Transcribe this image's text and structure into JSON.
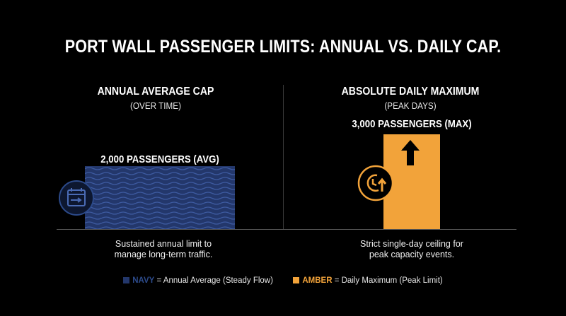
{
  "title": "PORT WALL PASSENGER LIMITS: ANNUAL VS. DAILY CAP.",
  "colors": {
    "navy": "#23376b",
    "amber": "#f2a33a",
    "background": "#000000"
  },
  "chart_data": {
    "type": "bar",
    "title": "PORT WALL PASSENGER LIMITS: ANNUAL VS. DAILY CAP.",
    "categories": [
      "ANNUAL AVERAGE CAP",
      "ABSOLUTE DAILY MAXIMUM"
    ],
    "values": [
      2000,
      3000
    ],
    "ylim": [
      0,
      3000
    ],
    "xlabel": "",
    "ylabel": "",
    "grid": false,
    "legend_position": "bottom"
  },
  "left_panel": {
    "heading": "ANNUAL AVERAGE CAP",
    "subheading": "(OVER TIME)",
    "value_label": "2,000 PASSENGERS (AVG)",
    "note_line1": "Sustained annual limit to",
    "note_line2": "manage long-term traffic.",
    "icon": "calendar-arrow-icon"
  },
  "right_panel": {
    "heading": "ABSOLUTE DAILY MAXIMUM",
    "subheading": "(PEAK DAYS)",
    "value_label": "3,000 PASSENGERS (MAX)",
    "note_line1": "Strict single-day ceiling for",
    "note_line2": "peak capacity events.",
    "icon": "clock-up-arrow-icon",
    "bar_icon": "up-arrow-icon"
  },
  "legend": {
    "navy_word": "NAVY",
    "navy_text": " = Annual Average (Steady Flow)",
    "amber_word": "AMBER",
    "amber_text": " = Daily Maximum (Peak Limit)"
  }
}
